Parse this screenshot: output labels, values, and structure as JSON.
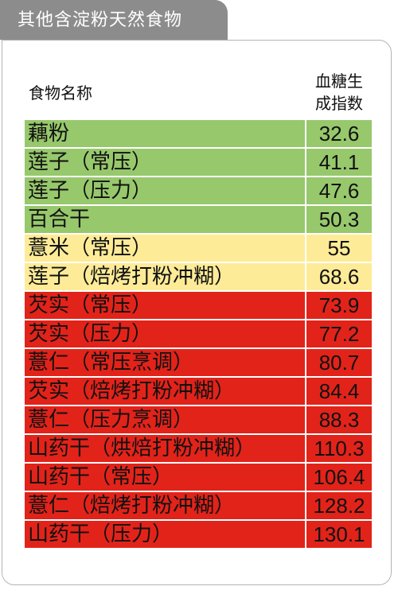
{
  "title": "其他含淀粉天然食物",
  "header": {
    "food_name": "食物名称",
    "gi_line1": "血糖生",
    "gi_line2": "成指数"
  },
  "colors": {
    "low": "#97c86c",
    "medium": "#fdeb97",
    "high": "#e2231a"
  },
  "rows": [
    {
      "name": "藕粉",
      "value": "32.6",
      "level": "low"
    },
    {
      "name": "莲子（常压）",
      "value": "41.1",
      "level": "low"
    },
    {
      "name": "莲子（压力）",
      "value": "47.6",
      "level": "low"
    },
    {
      "name": "百合干",
      "value": "50.3",
      "level": "low"
    },
    {
      "name": "薏米（常压）",
      "value": "55",
      "level": "medium"
    },
    {
      "name": "莲子（焙烤打粉冲糊）",
      "value": "68.6",
      "level": "medium"
    },
    {
      "name": "芡实（常压）",
      "value": "73.9",
      "level": "high"
    },
    {
      "name": "芡实（压力）",
      "value": "77.2",
      "level": "high"
    },
    {
      "name": "薏仁（常压烹调）",
      "value": "80.7",
      "level": "high"
    },
    {
      "name": "芡实（焙烤打粉冲糊）",
      "value": "84.4",
      "level": "high"
    },
    {
      "name": "薏仁（压力烹调）",
      "value": "88.3",
      "level": "high"
    },
    {
      "name": "山药干（烘焙打粉冲糊）",
      "value": "110.3",
      "level": "high"
    },
    {
      "name": "山药干（常压）",
      "value": "106.4",
      "level": "high"
    },
    {
      "name": "薏仁（焙烤打粉冲糊）",
      "value": "128.2",
      "level": "high"
    },
    {
      "name": "山药干（压力）",
      "value": "130.1",
      "level": "high"
    }
  ]
}
